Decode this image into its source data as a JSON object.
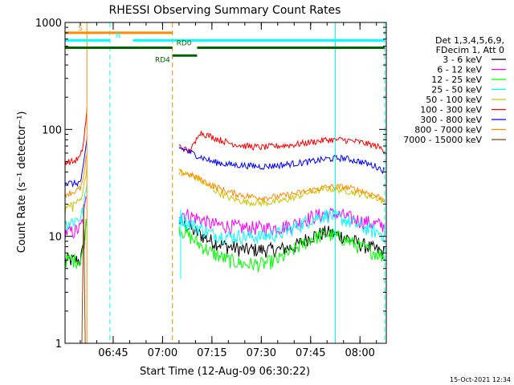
{
  "chart_data": {
    "type": "line",
    "title": "RHESSI Observing Summary Count Rates",
    "xlabel": "Start Time (12-Aug-09 06:30:22)",
    "ylabel": "Count Rate (s⁻¹ detector⁻¹)",
    "y_scale": "log",
    "ylim": [
      1,
      1000
    ],
    "xlim": [
      "06:30:22",
      "08:08:00"
    ],
    "y_ticks": [
      "1",
      "10",
      "100",
      "1000"
    ],
    "x_ticks": [
      "06:45",
      "07:00",
      "07:15",
      "07:30",
      "07:45",
      "08:00"
    ],
    "legend_title": [
      "Det 1,3,4,5,6,9,",
      "FDecim 1, Att 0"
    ],
    "legend_position": "right",
    "series": [
      {
        "name": "3 - 6 keV",
        "color": "#000000",
        "segments": [
          {
            "x": [
              "06:30:22",
              "06:33:00",
              "06:35:00",
              "06:36:00",
              "06:37:00"
            ],
            "y": [
              6,
              6,
              6,
              8,
              15
            ]
          },
          {
            "x": [
              "07:05:00",
              "07:10:00",
              "07:15:00",
              "07:20:00",
              "07:25:00",
              "07:30:00",
              "07:35:00",
              "07:40:00",
              "07:45:00",
              "07:50:00",
              "07:55:00",
              "08:00:00",
              "08:05:00",
              "08:07:30"
            ],
            "y": [
              14,
              11,
              9,
              8,
              7.5,
              7.5,
              7.5,
              8,
              10,
              11,
              10,
              8.5,
              7.5,
              7
            ]
          }
        ]
      },
      {
        "name": "6 - 12 keV",
        "color": "#ff00ff",
        "segments": [
          {
            "x": [
              "06:30:22",
              "06:33:00",
              "06:35:00",
              "06:36:00",
              "06:37:00"
            ],
            "y": [
              11,
              11,
              12,
              15,
              25
            ]
          },
          {
            "x": [
              "07:05:00",
              "07:10:00",
              "07:15:00",
              "07:20:00",
              "07:25:00",
              "07:30:00",
              "07:35:00",
              "07:40:00",
              "07:45:00",
              "07:50:00",
              "07:55:00",
              "08:00:00",
              "08:05:00",
              "08:07:30"
            ],
            "y": [
              17,
              15,
              13,
              12.5,
              12,
              12,
              12,
              13,
              15,
              16.5,
              15.5,
              14,
              13,
              12.5
            ]
          }
        ]
      },
      {
        "name": "12 - 25 keV",
        "color": "#00ff00",
        "segments": [
          {
            "x": [
              "06:30:22",
              "06:33:00",
              "06:35:00",
              "06:36:00",
              "06:37:00"
            ],
            "y": [
              6,
              6,
              6,
              8,
              16
            ]
          },
          {
            "x": [
              "07:05:00",
              "07:10:00",
              "07:15:00",
              "07:20:00",
              "07:25:00",
              "07:30:00",
              "07:35:00",
              "07:40:00",
              "07:45:00",
              "07:50:00",
              "07:55:00",
              "08:00:00",
              "08:05:00",
              "08:07:30"
            ],
            "y": [
              12,
              9,
              7,
              6,
              5.5,
              5.5,
              6,
              7.5,
              9.5,
              10.5,
              9.5,
              8,
              7,
              6.5
            ]
          }
        ]
      },
      {
        "name": "25 - 50 keV",
        "color": "#00ffff",
        "segments": [
          {
            "x": [
              "06:30:22",
              "06:33:00",
              "06:35:00",
              "06:36:00",
              "06:37:00"
            ],
            "y": [
              13,
              14,
              15,
              18,
              30
            ]
          },
          {
            "x": [
              "07:05:00",
              "07:10:00",
              "07:15:00",
              "07:20:00",
              "07:25:00",
              "07:30:00",
              "07:35:00",
              "07:40:00",
              "07:45:00",
              "07:50:00",
              "07:55:00",
              "08:00:00",
              "08:05:00",
              "08:07:30"
            ],
            "y": [
              15,
              12.5,
              10.5,
              10,
              10,
              10,
              10.5,
              12,
              14.5,
              16,
              14.5,
              12.5,
              11,
              10.5
            ]
          }
        ]
      },
      {
        "name": "50 - 100 keV",
        "color": "#c8c800",
        "segments": [
          {
            "x": [
              "06:30:22",
              "06:33:00",
              "06:35:00",
              "06:36:00",
              "06:37:00"
            ],
            "y": [
              18,
              20,
              22,
              28,
              45
            ]
          },
          {
            "x": [
              "07:05:00",
              "07:10:00",
              "07:15:00",
              "07:20:00",
              "07:25:00",
              "07:30:00",
              "07:35:00",
              "07:40:00",
              "07:45:00",
              "07:50:00",
              "07:55:00",
              "08:00:00",
              "08:05:00",
              "08:07:30"
            ],
            "y": [
              40,
              36,
              28,
              23,
              21,
              20.5,
              21,
              23,
              26,
              28,
              27,
              25,
              23,
              21
            ]
          }
        ]
      },
      {
        "name": "100 - 300 keV",
        "color": "#ff0000",
        "segments": [
          {
            "x": [
              "06:30:22",
              "06:33:00",
              "06:35:00",
              "06:36:00",
              "06:37:00"
            ],
            "y": [
              50,
              50,
              55,
              75,
              150
            ]
          },
          {
            "x": [
              "07:05:00",
              "07:08:00",
              "07:10:00",
              "07:11:00",
              "07:15:00",
              "07:20:00",
              "07:25:00",
              "07:30:00",
              "07:35:00",
              "07:40:00",
              "07:45:00",
              "07:50:00",
              "07:55:00",
              "08:00:00",
              "08:05:00",
              "08:07:30"
            ],
            "y": [
              70,
              62,
              75,
              95,
              85,
              75,
              70,
              68,
              70,
              72,
              76,
              80,
              80,
              76,
              70,
              64
            ]
          }
        ]
      },
      {
        "name": "300 - 800 keV",
        "color": "#0000ff",
        "segments": [
          {
            "x": [
              "06:30:22",
              "06:33:00",
              "06:35:00",
              "06:36:00",
              "06:37:00"
            ],
            "y": [
              32,
              31,
              32,
              45,
              80
            ]
          },
          {
            "x": [
              "07:05:00",
              "07:08:00",
              "07:10:00",
              "07:15:00",
              "07:20:00",
              "07:25:00",
              "07:30:00",
              "07:35:00",
              "07:40:00",
              "07:45:00",
              "07:50:00",
              "07:55:00",
              "08:00:00",
              "08:05:00",
              "08:07:30"
            ],
            "y": [
              68,
              62,
              58,
              50,
              47,
              46,
              45,
              46,
              48,
              50,
              53,
              54,
              50,
              45,
              41
            ]
          }
        ]
      },
      {
        "name": "800 - 7000 keV",
        "color": "#ff8c00",
        "segments": [
          {
            "x": [
              "06:30:22",
              "06:33:00",
              "06:35:00",
              "06:36:00",
              "06:37:00"
            ],
            "y": [
              25,
              26,
              28,
              35,
              60
            ]
          },
          {
            "x": [
              "07:05:00",
              "07:08:00",
              "07:10:00",
              "07:15:00",
              "07:20:00",
              "07:25:00",
              "07:30:00",
              "07:35:00",
              "07:40:00",
              "07:45:00",
              "07:50:00",
              "07:55:00",
              "08:00:00",
              "08:05:00",
              "08:07:30"
            ],
            "y": [
              40,
              38,
              36,
              30,
              26,
              24,
              23,
              23.5,
              25,
              27,
              29,
              29,
              27,
              24,
              22
            ]
          }
        ]
      },
      {
        "name": "7000 - 15000 keV",
        "color": "#8b4513",
        "segments": [
          {
            "x": [
              "06:35:30",
              "06:36:00",
              "06:36:30"
            ],
            "y": [
              1,
              20,
              1
            ]
          }
        ]
      }
    ],
    "annotations": [
      {
        "label": "S",
        "color": "#ff8c00",
        "y": 800,
        "x_start": "06:30:22",
        "x_end": "07:03:00",
        "label_x": "06:35:00"
      },
      {
        "label": "N",
        "color": "#00ffff",
        "y": 680,
        "x_start": "06:30:22",
        "x_end": "07:52:30",
        "label_x": "06:46:30",
        "gap": [
          "06:44:00",
          "06:51:00"
        ]
      },
      {
        "label": "N",
        "color": "#00ffff",
        "y": 680,
        "x_start": "07:52:30",
        "x_end": "08:07:30"
      },
      {
        "label": "RD0",
        "color": "#006400",
        "y": 580,
        "x_start": "06:30:22",
        "x_end": "08:07:30",
        "label_x": "07:06:30",
        "gap": [
          "07:03:00",
          "07:10:30"
        ]
      },
      {
        "label": "RD4",
        "color": "#006400",
        "y": 490,
        "x_start": "07:03:00",
        "x_end": "07:10:30",
        "label_x": "07:00:00"
      }
    ],
    "vertical_markers": [
      {
        "x": "06:30:22",
        "color": "#00ffff",
        "style": "solid"
      },
      {
        "x": "06:37:00",
        "color": "#ff8c00",
        "style": "solid"
      },
      {
        "x": "06:44:00",
        "color": "#00ffff",
        "style": "dashed"
      },
      {
        "x": "07:03:00",
        "color": "#ff8c00",
        "style": "dashed"
      },
      {
        "x": "07:05:30",
        "color": "#00ffff",
        "style": "solid_partial"
      },
      {
        "x": "07:52:30",
        "color": "#00ffff",
        "style": "solid"
      },
      {
        "x": "08:07:30",
        "color": "#00ffff",
        "style": "dashed"
      }
    ],
    "footer_stamp": "15-Oct-2021 12:34"
  }
}
